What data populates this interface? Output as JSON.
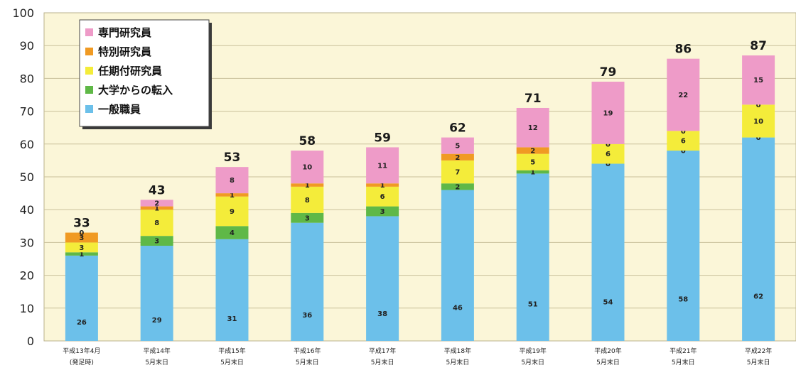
{
  "chart_data": {
    "type": "bar",
    "stacked": true,
    "ylim": [
      0,
      100
    ],
    "yticks": [
      "0",
      "10",
      "20",
      "30",
      "40",
      "50",
      "60",
      "70",
      "80",
      "90",
      "100"
    ],
    "grid": true,
    "legend_position": "top-left",
    "categories": [
      [
        "平成13年4月",
        "(発足時)"
      ],
      [
        "平成14年",
        "5月末日"
      ],
      [
        "平成15年",
        "5月末日"
      ],
      [
        "平成16年",
        "5月末日"
      ],
      [
        "平成17年",
        "5月末日"
      ],
      [
        "平成18年",
        "5月末日"
      ],
      [
        "平成19年",
        "5月末日"
      ],
      [
        "平成20年",
        "5月末日"
      ],
      [
        "平成21年",
        "5月末日"
      ],
      [
        "平成22年",
        "5月末日"
      ]
    ],
    "totals": [
      "33",
      "43",
      "53",
      "58",
      "59",
      "62",
      "71",
      "79",
      "86",
      "87"
    ],
    "series": [
      {
        "name": "一般職員",
        "color": "#6cc0ea",
        "values": [
          26,
          29,
          31,
          36,
          38,
          46,
          51,
          54,
          58,
          62
        ]
      },
      {
        "name": "大学からの転入",
        "color": "#5fb847",
        "values": [
          1,
          3,
          4,
          3,
          3,
          2,
          1,
          0,
          0,
          0
        ]
      },
      {
        "name": "任期付研究員",
        "color": "#f4ec3a",
        "values": [
          3,
          8,
          9,
          8,
          6,
          7,
          5,
          6,
          6,
          10
        ]
      },
      {
        "name": "特別研究員",
        "color": "#f09a23",
        "values": [
          3,
          1,
          1,
          1,
          1,
          2,
          2,
          0,
          0,
          0
        ]
      },
      {
        "name": "専門研究員",
        "color": "#ee9bc8",
        "values": [
          0,
          2,
          8,
          10,
          11,
          5,
          12,
          19,
          22,
          15
        ]
      }
    ],
    "legend_order": [
      "専門研究員",
      "特別研究員",
      "任期付研究員",
      "大学からの転入",
      "一般職員"
    ]
  }
}
